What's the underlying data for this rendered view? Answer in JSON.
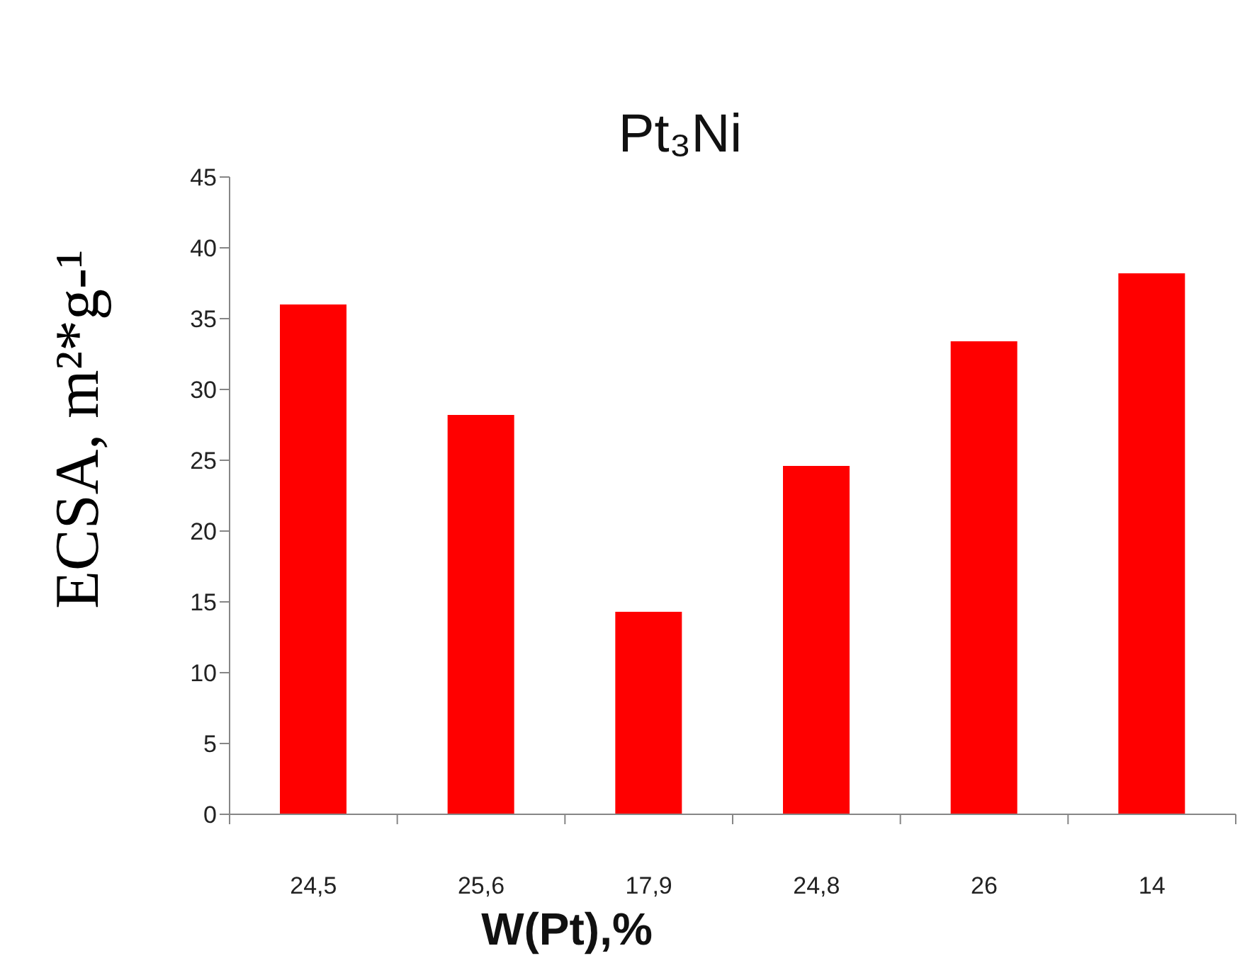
{
  "chart_data": {
    "type": "bar",
    "title": "Pt₃Ni",
    "xlabel": "W(Pt),%",
    "ylabel": "ECSA, m²*g-¹",
    "categories": [
      "24,5",
      "25,6",
      "17,9",
      "24,8",
      "26",
      "14"
    ],
    "values": [
      36,
      28.2,
      14.3,
      24.6,
      33.4,
      38.2
    ],
    "color": "#ff0000",
    "ylim": [
      0,
      45
    ],
    "yticks": [
      0,
      5,
      10,
      15,
      20,
      25,
      30,
      35,
      40,
      45
    ]
  }
}
